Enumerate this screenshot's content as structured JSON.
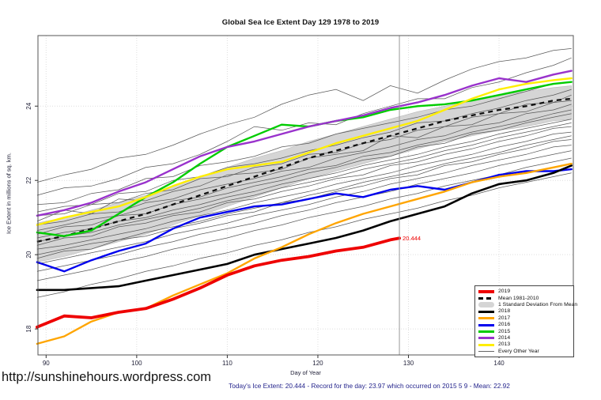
{
  "page": {
    "url_watermark": "http://sunshinehours.wordpress.com",
    "footer_stats": "Today's Ice Extent: 20.444  - Record for the day: 23.97 which occurred on 2015 5 9  - Mean: 22.92"
  },
  "chart_data": {
    "type": "line",
    "title": "Global Sea Ice Extent Day 129 1978 to 2019",
    "xlabel": "Day of Year",
    "ylabel": "Ice Extent in millions of sq. km.",
    "xlim": [
      89.1,
      148.2
    ],
    "ylim": [
      17.3,
      25.9
    ],
    "xticks": [
      90,
      100,
      110,
      120,
      130,
      140
    ],
    "yticks": [
      18,
      20,
      22,
      24
    ],
    "grid": "dotted",
    "grid_color": "#DEDEDE",
    "frame_color": "#555555",
    "vline": {
      "x": 129,
      "color": "#999999"
    },
    "annotation": {
      "x": 129,
      "y": 20.444,
      "text": "20.444",
      "color": "#EE0000"
    },
    "days": [
      89,
      92,
      95,
      98,
      101,
      104,
      107,
      110,
      113,
      116,
      119,
      122,
      125,
      128,
      131,
      134,
      137,
      140,
      143,
      146,
      148
    ],
    "band": {
      "label": "1 Standard Deviation From Mean",
      "color": "#D5D5D5",
      "upper": [
        20.85,
        21.0,
        21.2,
        21.4,
        21.6,
        21.85,
        22.1,
        22.35,
        22.6,
        22.8,
        23.05,
        23.25,
        23.45,
        23.65,
        23.85,
        24.0,
        24.15,
        24.3,
        24.4,
        24.5,
        24.55
      ],
      "lower": [
        19.8,
        19.95,
        20.15,
        20.35,
        20.55,
        20.8,
        21.05,
        21.3,
        21.55,
        21.8,
        22.05,
        22.25,
        22.45,
        22.65,
        22.85,
        23.05,
        23.2,
        23.35,
        23.45,
        23.6,
        23.65
      ]
    },
    "mean": {
      "label": "Mean 1981-2010",
      "color": "#111111",
      "style": "dashed",
      "values": [
        20.35,
        20.5,
        20.7,
        20.9,
        21.1,
        21.35,
        21.6,
        21.85,
        22.1,
        22.35,
        22.6,
        22.8,
        23.0,
        23.2,
        23.4,
        23.6,
        23.75,
        23.9,
        24.0,
        24.15,
        24.2
      ]
    },
    "series": [
      {
        "name": "2015",
        "color": "#00CC00",
        "width": 2.4,
        "values": [
          20.6,
          20.5,
          20.65,
          21.1,
          21.55,
          21.95,
          22.45,
          22.9,
          23.2,
          23.5,
          23.45,
          23.6,
          23.7,
          23.9,
          24.0,
          24.05,
          24.15,
          24.3,
          24.45,
          24.6,
          24.65
        ]
      },
      {
        "name": "2013",
        "color": "#FFEE00",
        "width": 2.4,
        "values": [
          20.8,
          21.0,
          21.15,
          21.3,
          21.55,
          21.85,
          22.1,
          22.3,
          22.4,
          22.5,
          22.75,
          23.0,
          23.2,
          23.4,
          23.6,
          23.9,
          24.2,
          24.45,
          24.6,
          24.7,
          24.75
        ]
      },
      {
        "name": "2014",
        "color": "#9932CC",
        "width": 2.4,
        "values": [
          21.05,
          21.2,
          21.4,
          21.7,
          21.95,
          22.3,
          22.65,
          22.9,
          23.05,
          23.25,
          23.45,
          23.6,
          23.75,
          23.95,
          24.1,
          24.3,
          24.55,
          24.75,
          24.65,
          24.85,
          24.95
        ]
      },
      {
        "name": "2016",
        "color": "#0000EE",
        "width": 2.4,
        "values": [
          19.8,
          19.55,
          19.85,
          20.1,
          20.3,
          20.7,
          21.0,
          21.15,
          21.3,
          21.35,
          21.5,
          21.65,
          21.55,
          21.75,
          21.85,
          21.75,
          21.95,
          22.15,
          22.25,
          22.25,
          22.3
        ]
      },
      {
        "name": "2018",
        "color": "#000000",
        "width": 2.6,
        "values": [
          19.05,
          19.05,
          19.1,
          19.15,
          19.3,
          19.45,
          19.6,
          19.75,
          20.0,
          20.15,
          20.3,
          20.45,
          20.65,
          20.9,
          21.1,
          21.3,
          21.65,
          21.9,
          22.0,
          22.2,
          22.4
        ]
      },
      {
        "name": "2017",
        "color": "#FFA500",
        "width": 2.4,
        "values": [
          17.6,
          17.8,
          18.2,
          18.45,
          18.55,
          18.9,
          19.2,
          19.5,
          19.9,
          20.2,
          20.55,
          20.85,
          21.1,
          21.3,
          21.5,
          21.7,
          21.95,
          22.1,
          22.2,
          22.35,
          22.45
        ]
      },
      {
        "name": "2019",
        "color": "#EE0000",
        "width": 3.8,
        "days": [
          89,
          92,
          95,
          98,
          101,
          104,
          107,
          110,
          113,
          116,
          119,
          122,
          125,
          128,
          129
        ],
        "values": [
          18.05,
          18.35,
          18.3,
          18.45,
          18.55,
          18.8,
          19.1,
          19.45,
          19.7,
          19.85,
          19.95,
          20.1,
          20.2,
          20.4,
          20.444
        ]
      }
    ],
    "background": {
      "label": "Every Other Year",
      "color": "#595959",
      "width": 0.75,
      "series": [
        [
          21.95,
          22.15,
          22.3,
          22.6,
          22.7,
          22.95,
          23.25,
          23.5,
          23.7,
          24.05,
          24.3,
          24.45,
          24.15,
          24.55,
          24.35,
          24.7,
          25.0,
          25.2,
          25.3,
          25.5,
          25.55
        ],
        [
          21.6,
          21.8,
          21.85,
          22.05,
          22.35,
          22.45,
          22.7,
          23.05,
          23.45,
          23.35,
          23.55,
          23.5,
          23.8,
          24.0,
          24.2,
          24.2,
          24.5,
          24.65,
          24.9,
          25.1,
          25.3
        ],
        [
          21.35,
          21.4,
          21.65,
          21.75,
          22.05,
          22.1,
          22.4,
          22.5,
          22.65,
          22.9,
          23.0,
          23.25,
          23.4,
          23.55,
          23.7,
          23.9,
          24.0,
          24.2,
          24.4,
          24.6,
          24.65
        ],
        [
          21.15,
          21.3,
          21.35,
          21.65,
          21.7,
          22.0,
          22.1,
          22.35,
          22.45,
          22.6,
          22.8,
          22.95,
          23.15,
          23.3,
          23.55,
          23.6,
          23.8,
          23.95,
          24.15,
          24.3,
          24.45
        ],
        [
          21.05,
          21.1,
          21.35,
          21.4,
          21.65,
          21.75,
          22.05,
          22.1,
          22.35,
          22.45,
          22.7,
          22.75,
          23.0,
          23.1,
          23.35,
          23.45,
          23.7,
          23.8,
          24.05,
          24.1,
          24.3
        ],
        [
          20.9,
          21.2,
          21.1,
          21.5,
          21.45,
          21.7,
          21.85,
          22.15,
          22.2,
          22.3,
          22.6,
          22.7,
          22.8,
          23.2,
          23.15,
          23.45,
          23.5,
          23.8,
          23.85,
          24.1,
          24.15
        ],
        [
          20.8,
          20.9,
          21.1,
          21.15,
          21.4,
          21.5,
          21.75,
          21.9,
          22.05,
          22.25,
          22.35,
          22.6,
          22.75,
          22.9,
          23.1,
          23.2,
          23.45,
          23.55,
          23.8,
          23.9,
          24.05
        ],
        [
          20.65,
          20.8,
          20.95,
          21.05,
          21.25,
          21.45,
          21.55,
          21.8,
          21.95,
          22.1,
          22.3,
          22.4,
          22.65,
          22.75,
          22.95,
          23.1,
          23.3,
          23.45,
          23.6,
          23.8,
          23.9
        ],
        [
          20.55,
          20.75,
          20.8,
          21.05,
          21.1,
          21.35,
          21.5,
          21.65,
          21.85,
          22.0,
          22.2,
          22.35,
          22.55,
          22.65,
          22.9,
          23.0,
          23.25,
          23.35,
          23.55,
          23.7,
          23.8
        ],
        [
          20.45,
          20.6,
          20.7,
          20.9,
          21.0,
          21.2,
          21.35,
          21.55,
          21.7,
          21.9,
          22.05,
          22.2,
          22.4,
          22.55,
          22.7,
          22.9,
          23.05,
          23.25,
          23.4,
          23.55,
          23.65
        ],
        [
          20.35,
          20.5,
          20.6,
          20.8,
          20.95,
          21.1,
          21.25,
          21.45,
          21.6,
          21.8,
          21.95,
          22.1,
          22.3,
          22.45,
          22.6,
          22.8,
          22.95,
          23.15,
          23.3,
          23.45,
          23.55
        ],
        [
          20.25,
          20.45,
          20.5,
          20.75,
          20.85,
          21.05,
          21.15,
          21.4,
          21.5,
          21.7,
          21.85,
          22.05,
          22.15,
          22.4,
          22.5,
          22.7,
          22.85,
          23.05,
          23.2,
          23.4,
          23.45
        ],
        [
          20.15,
          20.25,
          20.4,
          20.55,
          20.7,
          20.9,
          21.05,
          21.2,
          21.4,
          21.55,
          21.7,
          21.9,
          22.05,
          22.2,
          22.4,
          22.55,
          22.7,
          22.9,
          23.05,
          23.25,
          23.3
        ],
        [
          20.0,
          20.15,
          20.3,
          20.4,
          20.6,
          20.75,
          20.9,
          21.1,
          21.25,
          21.4,
          21.6,
          21.75,
          21.95,
          22.1,
          22.25,
          22.45,
          22.6,
          22.75,
          22.95,
          23.1,
          23.2
        ],
        [
          19.9,
          20.1,
          20.15,
          20.4,
          20.5,
          20.7,
          20.85,
          21.05,
          21.15,
          21.4,
          21.5,
          21.7,
          21.85,
          22.05,
          22.15,
          22.4,
          22.5,
          22.7,
          22.85,
          23.05,
          23.1
        ],
        [
          19.75,
          19.9,
          20.05,
          20.2,
          20.35,
          20.55,
          20.7,
          20.85,
          21.05,
          21.2,
          21.35,
          21.55,
          21.7,
          21.9,
          22.05,
          22.2,
          22.4,
          22.55,
          22.7,
          22.9,
          22.95
        ],
        [
          19.55,
          19.7,
          19.85,
          20.0,
          20.2,
          20.35,
          20.55,
          20.7,
          20.85,
          21.05,
          21.2,
          21.4,
          21.55,
          21.7,
          21.9,
          22.05,
          22.2,
          22.4,
          22.55,
          22.7,
          22.8
        ],
        [
          19.3,
          19.45,
          19.6,
          19.8,
          19.95,
          20.15,
          20.3,
          20.45,
          20.65,
          20.8,
          21.0,
          21.15,
          21.3,
          21.5,
          21.65,
          21.85,
          22.0,
          22.15,
          22.35,
          22.5,
          22.6
        ],
        [
          18.85,
          19.0,
          19.2,
          19.35,
          19.55,
          19.7,
          19.9,
          20.05,
          20.25,
          20.4,
          20.6,
          20.75,
          20.95,
          21.1,
          21.25,
          21.45,
          21.6,
          21.8,
          21.95,
          22.1,
          22.2
        ]
      ]
    }
  },
  "legend": {
    "items": [
      {
        "label": "2019",
        "type": "thick-line",
        "color": "#EE0000"
      },
      {
        "label": "Mean 1981-2010",
        "type": "dashed",
        "color": "#000000"
      },
      {
        "label": "1 Standard Deviation From Mean",
        "type": "band",
        "color": "#D5D5D5"
      },
      {
        "label": "2018",
        "type": "line",
        "color": "#000000"
      },
      {
        "label": "2017",
        "type": "line",
        "color": "#FFA500"
      },
      {
        "label": "2016",
        "type": "line",
        "color": "#0000EE"
      },
      {
        "label": "2015",
        "type": "line",
        "color": "#00CC00"
      },
      {
        "label": "2014",
        "type": "line",
        "color": "#9932CC"
      },
      {
        "label": "2013",
        "type": "line",
        "color": "#FFEE00"
      },
      {
        "label": "Every Other Year",
        "type": "thin-line",
        "color": "#666666"
      }
    ]
  }
}
